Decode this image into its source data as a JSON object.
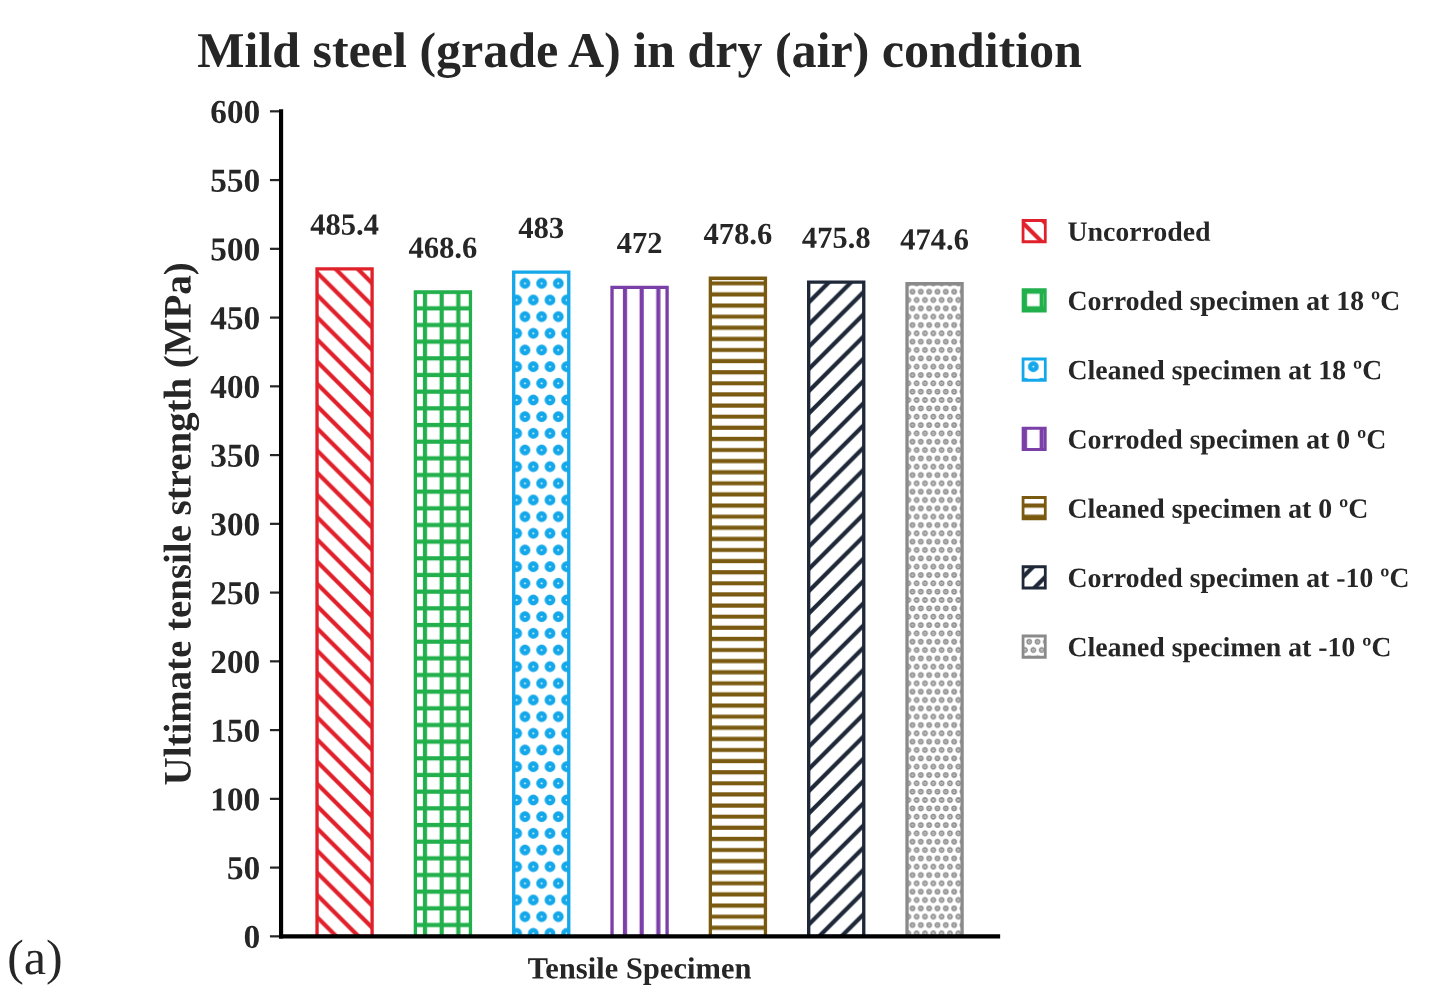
{
  "chart_data": {
    "type": "bar",
    "title": "Mild steel (grade A) in dry (air) condition",
    "xlabel": "Tensile Specimen",
    "ylabel": "Ultimate tensile strength (MPa)",
    "annotations": [
      "(a)"
    ],
    "categories": [
      null
    ],
    "series": [
      {
        "name": "Uncorroded",
        "color": "#e0202a",
        "values": [
          485.4
        ]
      },
      {
        "name": "Corroded specimen at 18 ºC",
        "color": "#22b04c",
        "values": [
          468.6
        ]
      },
      {
        "name": "Cleaned specimen at 18 ºC",
        "color": "#14a8ea",
        "values": [
          483
        ]
      },
      {
        "name": "Corroded specimen at 0 ºC",
        "color": "#7b3fa8",
        "values": [
          472
        ]
      },
      {
        "name": "Cleaned specimen at 0 ºC",
        "color": "#7a5a10",
        "values": [
          478.6
        ]
      },
      {
        "name": "Corroded specimen at -10 ºC",
        "color": "#1e2838",
        "values": [
          475.8
        ]
      },
      {
        "name": "Cleaned specimen at -10 ºC",
        "color": "#8a8a8a",
        "values": [
          474.6
        ]
      }
    ],
    "ylim": [
      0,
      600
    ],
    "yticks": [
      0,
      50,
      100,
      150,
      200,
      250,
      300,
      350,
      400,
      450,
      500,
      550,
      600
    ],
    "data_labels": true,
    "grid": false,
    "legend": "right"
  }
}
